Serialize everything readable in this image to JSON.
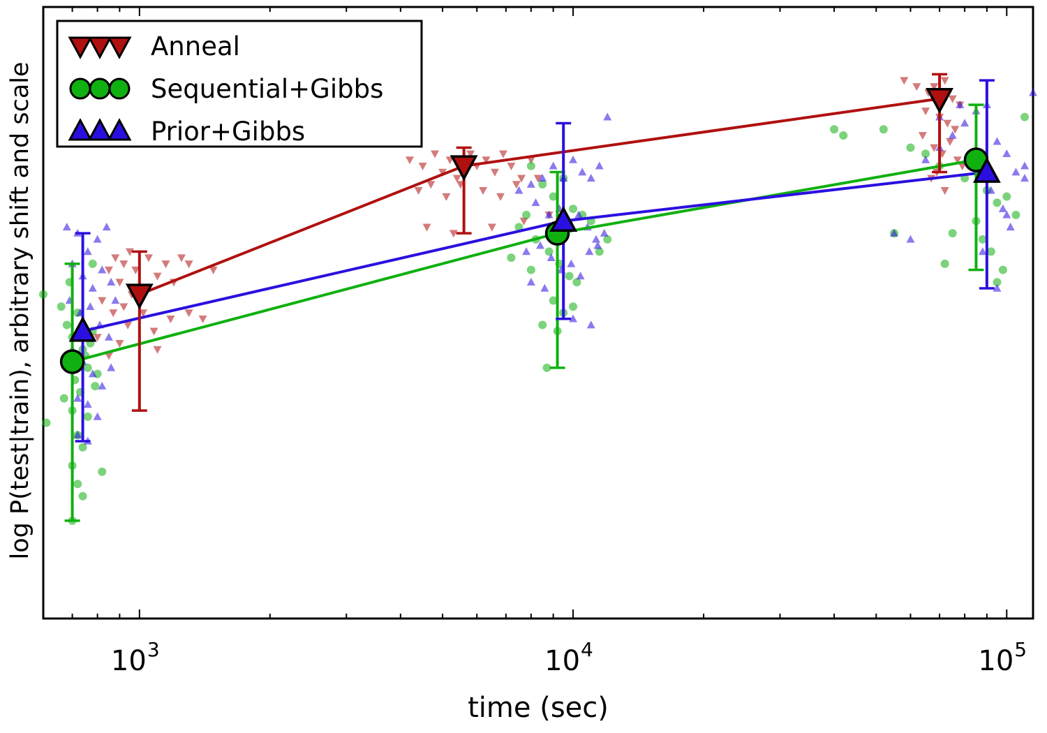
{
  "chart_data": {
    "type": "scatter",
    "title": "",
    "xlabel": "time (sec)",
    "ylabel": "log P(test|train),  arbitrary shift and scale",
    "xscale": "log",
    "xlim": [
      600,
      115000
    ],
    "ylim": [
      0,
      100
    ],
    "grid": false,
    "legend": {
      "position": "top-left"
    },
    "x_ticks": [
      {
        "value": 1000,
        "base": "10",
        "exp": "3"
      },
      {
        "value": 10000,
        "base": "10",
        "exp": "4"
      },
      {
        "value": 100000,
        "base": "10",
        "exp": "5"
      }
    ],
    "series": [
      {
        "name": "Anneal",
        "color": "#b01010",
        "marker": "triangle-down",
        "x": [
          1000,
          5600,
          70000
        ],
        "y": [
          53,
          74,
          85
        ],
        "err_low": [
          34,
          63,
          73
        ],
        "err_high": [
          60,
          77,
          89
        ],
        "scatter": [
          [
            850,
            57
          ],
          [
            880,
            59
          ],
          [
            900,
            55
          ],
          [
            920,
            58
          ],
          [
            950,
            60
          ],
          [
            980,
            57
          ],
          [
            1050,
            59
          ],
          [
            1100,
            56
          ],
          [
            1150,
            58
          ],
          [
            1200,
            55
          ],
          [
            1250,
            59
          ],
          [
            1300,
            58
          ],
          [
            820,
            52
          ],
          [
            870,
            50
          ],
          [
            940,
            48
          ],
          [
            960,
            53
          ],
          [
            1020,
            50
          ],
          [
            1080,
            47
          ],
          [
            1180,
            49
          ],
          [
            1300,
            50
          ],
          [
            1480,
            57
          ],
          [
            1400,
            49
          ],
          [
            800,
            46
          ],
          [
            900,
            45
          ],
          [
            850,
            43
          ],
          [
            1100,
            44
          ],
          [
            920,
            51
          ],
          [
            990,
            54
          ],
          [
            4200,
            75
          ],
          [
            4500,
            74
          ],
          [
            4800,
            76
          ],
          [
            5000,
            73
          ],
          [
            5200,
            75
          ],
          [
            5400,
            72
          ],
          [
            5800,
            76
          ],
          [
            6000,
            74
          ],
          [
            6300,
            75
          ],
          [
            6600,
            73
          ],
          [
            6900,
            76
          ],
          [
            7200,
            74
          ],
          [
            7600,
            72
          ],
          [
            8000,
            75
          ],
          [
            4400,
            70
          ],
          [
            4700,
            71
          ],
          [
            5100,
            69
          ],
          [
            5500,
            71
          ],
          [
            6200,
            70
          ],
          [
            6800,
            69
          ],
          [
            7400,
            71
          ],
          [
            8300,
            72
          ],
          [
            4600,
            64
          ],
          [
            5300,
            63
          ],
          [
            6500,
            64
          ],
          [
            7700,
            65
          ],
          [
            8800,
            66
          ],
          [
            58000,
            88
          ],
          [
            62000,
            87
          ],
          [
            66000,
            86
          ],
          [
            68000,
            87
          ],
          [
            72000,
            88
          ],
          [
            75000,
            85
          ],
          [
            78000,
            84
          ],
          [
            65000,
            83
          ],
          [
            70000,
            82
          ],
          [
            73000,
            81
          ],
          [
            76000,
            80
          ],
          [
            64000,
            79
          ],
          [
            68000,
            77
          ],
          [
            71000,
            76
          ],
          [
            74000,
            78
          ],
          [
            77000,
            75
          ],
          [
            79000,
            74
          ],
          [
            69000,
            73
          ],
          [
            72000,
            70
          ],
          [
            67000,
            72
          ]
        ]
      },
      {
        "name": "Sequential+Gibbs",
        "color": "#10b010",
        "marker": "circle",
        "x": [
          700,
          9200,
          85000
        ],
        "y": [
          42,
          63,
          75
        ],
        "err_low": [
          16,
          41,
          57
        ],
        "err_high": [
          58,
          73,
          84
        ],
        "scatter": [
          [
            600,
            53
          ],
          [
            610,
            32
          ],
          [
            680,
            48
          ],
          [
            700,
            46
          ],
          [
            720,
            50
          ],
          [
            740,
            44
          ],
          [
            760,
            41
          ],
          [
            690,
            42
          ],
          [
            710,
            39
          ],
          [
            730,
            37
          ],
          [
            750,
            43
          ],
          [
            770,
            45
          ],
          [
            780,
            47
          ],
          [
            800,
            40
          ],
          [
            670,
            36
          ],
          [
            700,
            34
          ],
          [
            720,
            30
          ],
          [
            740,
            28
          ],
          [
            760,
            33
          ],
          [
            790,
            38
          ],
          [
            700,
            25
          ],
          [
            720,
            22
          ],
          [
            740,
            20
          ],
          [
            700,
            16
          ],
          [
            820,
            24
          ],
          [
            690,
            55
          ],
          [
            780,
            58
          ],
          [
            660,
            51
          ],
          [
            8000,
            74
          ],
          [
            8500,
            71
          ],
          [
            9000,
            69
          ],
          [
            9500,
            72
          ],
          [
            10000,
            67
          ],
          [
            10500,
            66
          ],
          [
            11000,
            65
          ],
          [
            12000,
            62
          ],
          [
            7500,
            64
          ],
          [
            8200,
            62
          ],
          [
            8800,
            60
          ],
          [
            9300,
            58
          ],
          [
            9800,
            56
          ],
          [
            10200,
            55
          ],
          [
            7200,
            59
          ],
          [
            8000,
            57
          ],
          [
            9000,
            52
          ],
          [
            9500,
            50
          ],
          [
            10000,
            51
          ],
          [
            8500,
            48
          ],
          [
            9200,
            47
          ],
          [
            8700,
            41
          ],
          [
            11500,
            60
          ],
          [
            7800,
            66
          ],
          [
            52000,
            80
          ],
          [
            60000,
            77
          ],
          [
            65000,
            76
          ],
          [
            70000,
            74
          ],
          [
            80000,
            72
          ],
          [
            90000,
            70
          ],
          [
            95000,
            68
          ],
          [
            100000,
            69
          ],
          [
            105000,
            66
          ],
          [
            85000,
            65
          ],
          [
            75000,
            63
          ],
          [
            72000,
            58
          ],
          [
            88000,
            62
          ],
          [
            92000,
            60
          ],
          [
            98000,
            57
          ],
          [
            95000,
            55
          ],
          [
            110000,
            82
          ],
          [
            55000,
            63
          ],
          [
            40000,
            80
          ],
          [
            42000,
            79
          ]
        ]
      },
      {
        "name": "Prior+Gibbs",
        "color": "#2a10e0",
        "marker": "triangle-up",
        "x": [
          740,
          9500,
          90000
        ],
        "y": [
          47,
          65,
          73
        ],
        "err_low": [
          29,
          49,
          54
        ],
        "err_high": [
          63,
          81,
          88
        ],
        "scatter": [
          [
            680,
            64
          ],
          [
            720,
            63
          ],
          [
            760,
            60
          ],
          [
            800,
            62
          ],
          [
            840,
            64
          ],
          [
            700,
            58
          ],
          [
            740,
            56
          ],
          [
            780,
            54
          ],
          [
            820,
            57
          ],
          [
            860,
            55
          ],
          [
            690,
            52
          ],
          [
            730,
            50
          ],
          [
            770,
            51
          ],
          [
            810,
            48
          ],
          [
            850,
            46
          ],
          [
            700,
            44
          ],
          [
            740,
            42
          ],
          [
            780,
            40
          ],
          [
            820,
            38
          ],
          [
            860,
            41
          ],
          [
            720,
            36
          ],
          [
            760,
            35
          ],
          [
            800,
            33
          ],
          [
            720,
            30
          ],
          [
            760,
            29
          ],
          [
            880,
            52
          ],
          [
            7500,
            70
          ],
          [
            8000,
            71
          ],
          [
            8500,
            72
          ],
          [
            9000,
            74
          ],
          [
            9500,
            72
          ],
          [
            10000,
            75
          ],
          [
            10500,
            73
          ],
          [
            11000,
            72
          ],
          [
            11500,
            74
          ],
          [
            12000,
            82
          ],
          [
            8200,
            68
          ],
          [
            8800,
            66
          ],
          [
            9300,
            67
          ],
          [
            9800,
            65
          ],
          [
            10300,
            66
          ],
          [
            10800,
            64
          ],
          [
            11300,
            62
          ],
          [
            11800,
            63
          ],
          [
            7800,
            60
          ],
          [
            8400,
            61
          ],
          [
            8900,
            59
          ],
          [
            9400,
            57
          ],
          [
            9900,
            58
          ],
          [
            10400,
            56
          ],
          [
            10900,
            60
          ],
          [
            11400,
            61
          ],
          [
            8000,
            55
          ],
          [
            8600,
            54
          ],
          [
            10000,
            49
          ],
          [
            11000,
            48
          ],
          [
            55000,
            63
          ],
          [
            60000,
            62
          ],
          [
            65000,
            75
          ],
          [
            70000,
            77
          ],
          [
            75000,
            79
          ],
          [
            80000,
            81
          ],
          [
            85000,
            83
          ],
          [
            90000,
            84
          ],
          [
            95000,
            78
          ],
          [
            100000,
            76
          ],
          [
            105000,
            73
          ],
          [
            110000,
            72
          ],
          [
            115000,
            86
          ],
          [
            70000,
            82
          ],
          [
            78000,
            84
          ],
          [
            92000,
            70
          ],
          [
            98000,
            67
          ],
          [
            102000,
            64
          ],
          [
            88000,
            60
          ],
          [
            95000,
            54
          ],
          [
            100000,
            66
          ],
          [
            110000,
            74
          ]
        ]
      }
    ]
  }
}
